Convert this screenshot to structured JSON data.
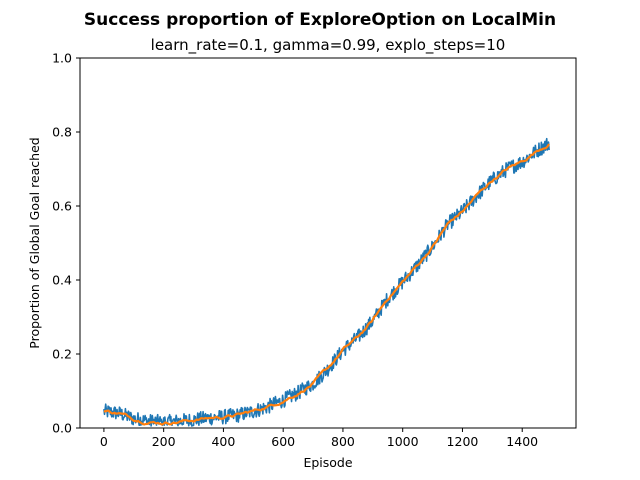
{
  "chart_data": {
    "type": "line",
    "title": "Success proportion of ExploreOption on LocalMin",
    "subtitle": "learn_rate=0.1, gamma=0.99, explo_steps=10",
    "xlabel": "Episode",
    "ylabel": "Proportion of Global Goal reached",
    "xlim": [
      -80,
      1580
    ],
    "ylim": [
      0,
      1.0
    ],
    "xticks": [
      0,
      200,
      400,
      600,
      800,
      1000,
      1200,
      1400
    ],
    "yticks": [
      0.0,
      0.2,
      0.4,
      0.6,
      0.8,
      1.0
    ],
    "xtick_labels": [
      "0",
      "200",
      "400",
      "600",
      "800",
      "1000",
      "1200",
      "1400"
    ],
    "ytick_labels": [
      "0.0",
      "0.2",
      "0.4",
      "0.6",
      "0.8",
      "1.0"
    ],
    "grid": false,
    "colors": {
      "raw": "#1f77b4",
      "smooth": "#ff7f0e"
    },
    "series": [
      {
        "style": "raw-noisy",
        "x": [
          0,
          50,
          100,
          150,
          200,
          250,
          300,
          350,
          400,
          450,
          500,
          550,
          600,
          650,
          700,
          750,
          800,
          850,
          900,
          950,
          1000,
          1050,
          1100,
          1150,
          1200,
          1250,
          1300,
          1350,
          1400,
          1450,
          1490
        ],
        "values": [
          0.045,
          0.04,
          0.025,
          0.018,
          0.015,
          0.018,
          0.022,
          0.027,
          0.03,
          0.035,
          0.045,
          0.058,
          0.075,
          0.095,
          0.12,
          0.16,
          0.21,
          0.245,
          0.29,
          0.35,
          0.395,
          0.44,
          0.49,
          0.55,
          0.585,
          0.63,
          0.67,
          0.7,
          0.72,
          0.75,
          0.77
        ],
        "noise_amplitude": 0.02
      },
      {
        "style": "smoothed",
        "x": [
          0,
          50,
          100,
          150,
          200,
          250,
          300,
          350,
          400,
          450,
          500,
          550,
          600,
          650,
          700,
          750,
          800,
          850,
          900,
          950,
          1000,
          1050,
          1100,
          1150,
          1200,
          1250,
          1300,
          1350,
          1400,
          1450,
          1490
        ],
        "values": [
          0.045,
          0.04,
          0.025,
          0.018,
          0.015,
          0.018,
          0.022,
          0.027,
          0.03,
          0.035,
          0.045,
          0.058,
          0.075,
          0.095,
          0.12,
          0.16,
          0.21,
          0.245,
          0.29,
          0.35,
          0.395,
          0.44,
          0.49,
          0.55,
          0.585,
          0.63,
          0.67,
          0.7,
          0.72,
          0.75,
          0.77
        ]
      }
    ]
  }
}
